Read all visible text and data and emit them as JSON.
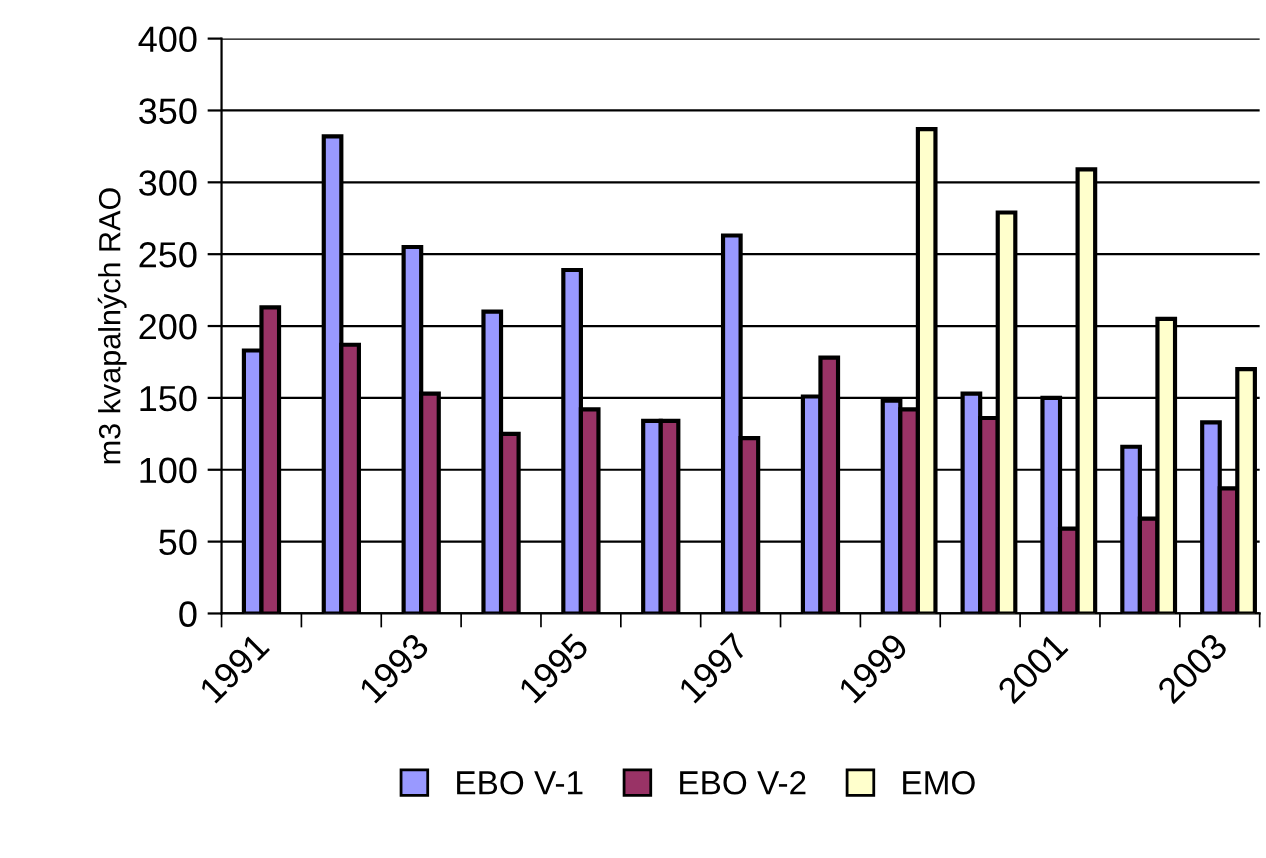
{
  "chart_data": {
    "type": "bar",
    "categories": [
      "1991",
      null,
      "1993",
      null,
      "1995",
      null,
      "1997",
      null,
      "1999",
      null,
      "2001",
      null,
      "2003"
    ],
    "ylabel": "m3 kvapalných RAO",
    "ylim": [
      0,
      400
    ],
    "yticks": [
      0,
      50,
      100,
      150,
      200,
      250,
      300,
      350,
      400
    ],
    "grid": "y",
    "legend": "bottom",
    "series": [
      {
        "name": "EBO V-1",
        "color": "#9999ff",
        "values": [
          183,
          332,
          255,
          210,
          239,
          134,
          263,
          151,
          148,
          153,
          150,
          116,
          133
        ]
      },
      {
        "name": "EBO V-2",
        "color": "#993366",
        "values": [
          213,
          187,
          153,
          125,
          142,
          134,
          122,
          178,
          142,
          136,
          59,
          66,
          87
        ]
      },
      {
        "name": "EMO",
        "color": "#ffffcc",
        "values": [
          null,
          null,
          null,
          null,
          null,
          null,
          null,
          null,
          337,
          279,
          309,
          205,
          170
        ]
      }
    ]
  }
}
